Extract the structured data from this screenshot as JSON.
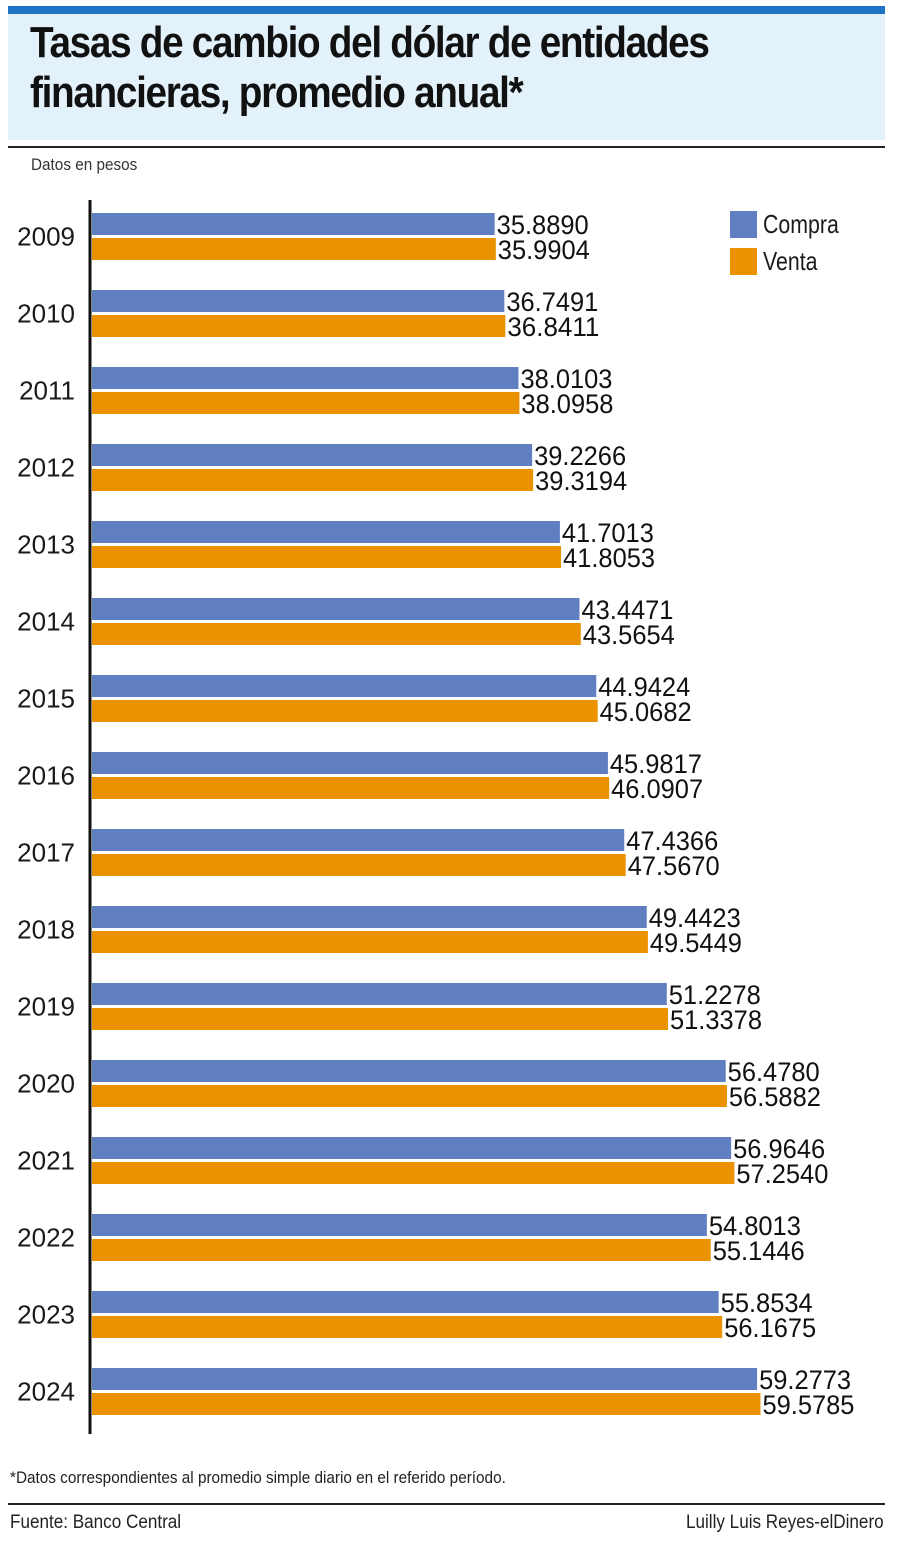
{
  "header": {
    "title_line1": "Tasas de cambio del dólar de entidades",
    "title_line2": "financieras, promedio anual*",
    "subtitle": "Datos en pesos"
  },
  "legend": [
    {
      "label": "Compra",
      "color": "#5f7fc0"
    },
    {
      "label": "Venta",
      "color": "#ea9200"
    }
  ],
  "chart_data": {
    "type": "bar",
    "orientation": "horizontal",
    "title": "Tasas de cambio del dólar de entidades financieras, promedio anual*",
    "subtitle": "Datos en pesos",
    "legend_position": "top-right",
    "grid": false,
    "categories": [
      "2009",
      "2010",
      "2011",
      "2012",
      "2013",
      "2014",
      "2015",
      "2016",
      "2017",
      "2018",
      "2019",
      "2020",
      "2021",
      "2022",
      "2023",
      "2024"
    ],
    "series": [
      {
        "name": "Compra",
        "color": "#5f7fc0",
        "values": [
          35.889,
          36.7491,
          38.0103,
          39.2266,
          41.7013,
          43.4471,
          44.9424,
          45.9817,
          47.4366,
          49.4423,
          51.2278,
          56.478,
          56.9646,
          54.8013,
          55.8534,
          59.2773
        ],
        "labels": [
          "35.8890",
          "36.7491",
          "38.0103",
          "39.2266",
          "41.7013",
          "43.4471",
          "44.9424",
          "45.9817",
          "47.4366",
          "49.4423",
          "51.2278",
          "56.4780",
          "56.9646",
          "54.8013",
          "55.8534",
          "59.2773"
        ]
      },
      {
        "name": "Venta",
        "color": "#ea9200",
        "values": [
          35.9904,
          36.8411,
          38.0958,
          39.3194,
          41.8053,
          43.5654,
          45.0682,
          46.0907,
          47.567,
          49.5449,
          51.3378,
          56.5882,
          57.254,
          55.1446,
          56.1675,
          59.5785
        ],
        "labels": [
          "35.9904",
          "36.8411",
          "38.0958",
          "39.3194",
          "41.8053",
          "43.5654",
          "45.0682",
          "46.0907",
          "47.5670",
          "49.5449",
          "51.3378",
          "56.5882",
          "57.2540",
          "55.1446",
          "56.1675",
          "59.5785"
        ]
      }
    ]
  },
  "footer": {
    "footnote": "*Datos correspondientes al promedio simple diario en el referido período.",
    "source": "Fuente: Banco Central",
    "credit": "Luilly Luis Reyes-elDinero"
  }
}
